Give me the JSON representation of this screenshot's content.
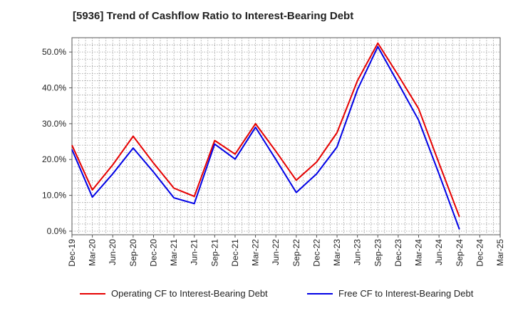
{
  "chart_data": {
    "type": "line",
    "title": "[5936]  Trend of Cashflow Ratio to Interest-Bearing Debt",
    "x": [
      "Dec-19",
      "Mar-20",
      "Jun-20",
      "Sep-20",
      "Dec-20",
      "Mar-21",
      "Jun-21",
      "Sep-21",
      "Dec-21",
      "Mar-22",
      "Jun-22",
      "Sep-22",
      "Dec-22",
      "Mar-23",
      "Jun-23",
      "Sep-23",
      "Dec-23",
      "Mar-24",
      "Jun-24",
      "Sep-24",
      "Dec-24",
      "Mar-25"
    ],
    "y_ticks": [
      "0.0%",
      "10.0%",
      "20.0%",
      "30.0%",
      "40.0%",
      "50.0%"
    ],
    "ylim": [
      -1,
      54
    ],
    "grid": true,
    "legend_position": "bottom",
    "series": [
      {
        "name": "Operating CF to Interest-Bearing Debt",
        "color": "#e60000",
        "values": [
          24.0,
          11.5,
          18.5,
          26.5,
          19.0,
          12.0,
          9.7,
          25.3,
          21.5,
          30.0,
          22.3,
          14.2,
          19.3,
          27.5,
          42.0,
          52.5,
          43.5,
          34.2,
          19.0,
          4.0,
          null,
          null
        ]
      },
      {
        "name": "Free CF to Interest-Bearing Debt",
        "color": "#0000e6",
        "values": [
          22.8,
          9.5,
          16.0,
          23.2,
          16.5,
          9.3,
          7.7,
          24.3,
          20.1,
          29.0,
          20.0,
          10.8,
          16.0,
          23.5,
          39.5,
          51.5,
          41.3,
          31.0,
          16.0,
          0.5,
          null,
          null
        ]
      }
    ]
  }
}
